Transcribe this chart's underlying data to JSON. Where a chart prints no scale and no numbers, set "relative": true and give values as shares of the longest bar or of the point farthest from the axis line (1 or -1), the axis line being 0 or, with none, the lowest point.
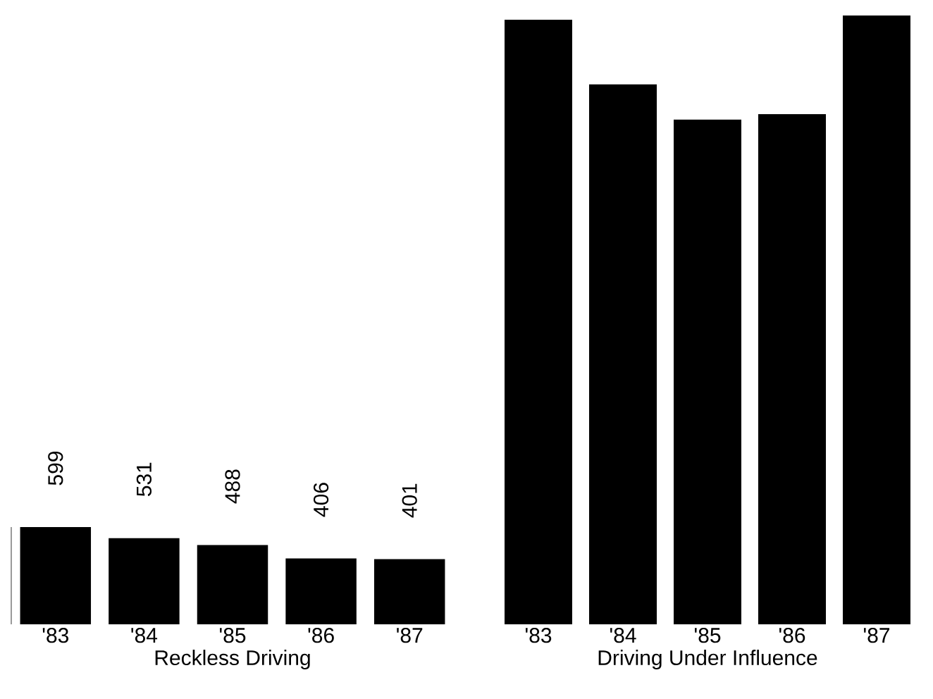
{
  "chart_data": [
    {
      "type": "bar",
      "categories": [
        "'83",
        "'84",
        "'85",
        "'86",
        "'87"
      ],
      "xlabel": "Reckless Driving",
      "color": "#000000",
      "values": [
        599,
        531,
        488,
        406,
        401
      ],
      "data_labels": true
    },
    {
      "type": "bar",
      "categories": [
        "'83",
        "'84",
        "'85",
        "'86",
        "'87"
      ],
      "xlabel": "Driving Under Influence",
      "color": "#000000",
      "values": [
        0.993,
        0.887,
        0.829,
        0.838,
        1
      ],
      "relative": true
    }
  ]
}
